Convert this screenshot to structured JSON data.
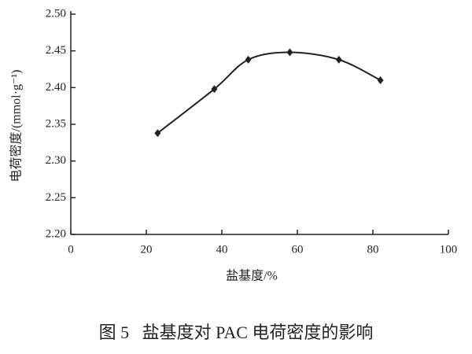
{
  "chart_data": {
    "type": "line",
    "caption": "图 5   盐基度对 PAC 电荷密度的影响",
    "x_label": "盐基度/%",
    "y_label": "电荷密度/(mmol·g⁻¹)",
    "x": [
      23,
      38,
      47,
      58,
      71,
      82
    ],
    "series": [
      {
        "color": "#222222",
        "values": [
          2.338,
          2.398,
          2.438,
          2.448,
          2.438,
          2.41
        ]
      }
    ],
    "xlim": [
      0,
      100
    ],
    "xticks": [
      0,
      20,
      40,
      60,
      80,
      100
    ],
    "ylim": [
      2.2,
      2.5
    ],
    "yticks": [
      {
        "value": 2.2,
        "label": "2.20"
      },
      {
        "value": 2.25,
        "label": "2.25"
      },
      {
        "value": 2.3,
        "label": "2.30"
      },
      {
        "value": 2.35,
        "label": "2.35"
      },
      {
        "value": 2.4,
        "label": "2.40"
      },
      {
        "value": 2.45,
        "label": "2.45"
      },
      {
        "value": 2.5,
        "label": "2.50"
      }
    ]
  }
}
